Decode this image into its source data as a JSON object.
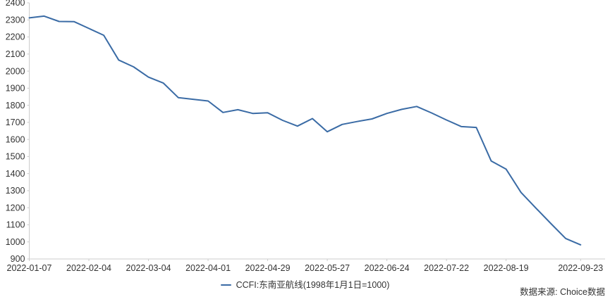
{
  "chart_data": {
    "type": "line",
    "title": "",
    "xlabel": "",
    "ylabel": "",
    "x": [
      "2022-01-07",
      "2022-01-14",
      "2022-01-21",
      "2022-01-28",
      "2022-02-04",
      "2022-02-11",
      "2022-02-18",
      "2022-02-25",
      "2022-03-04",
      "2022-03-11",
      "2022-03-18",
      "2022-03-25",
      "2022-04-01",
      "2022-04-08",
      "2022-04-15",
      "2022-04-22",
      "2022-04-29",
      "2022-05-06",
      "2022-05-13",
      "2022-05-20",
      "2022-05-27",
      "2022-06-03",
      "2022-06-10",
      "2022-06-17",
      "2022-06-24",
      "2022-07-01",
      "2022-07-08",
      "2022-07-15",
      "2022-07-22",
      "2022-07-29",
      "2022-08-05",
      "2022-08-12",
      "2022-08-19",
      "2022-08-26",
      "2022-09-02",
      "2022-09-09",
      "2022-09-16",
      "2022-09-23"
    ],
    "series": [
      {
        "name": "CCFI:东南亚航线(1998年1月1日=1000)",
        "color": "#3A6BA5",
        "values": [
          2312,
          2322,
          2291,
          2290,
          2250,
          2210,
          2065,
          2025,
          1965,
          1930,
          1845,
          1835,
          1825,
          1758,
          1774,
          1752,
          1756,
          1712,
          1678,
          1722,
          1645,
          1688,
          1705,
          1720,
          1752,
          1776,
          1793,
          1755,
          1714,
          1675,
          1670,
          1474,
          1426,
          1290,
          1198,
          1108,
          1020,
          983
        ]
      }
    ],
    "x_tick_labels": [
      "2022-01-07",
      "2022-02-04",
      "2022-03-04",
      "2022-04-01",
      "2022-04-29",
      "2022-05-27",
      "2022-06-24",
      "2022-07-22",
      "2022-08-19",
      "2022-09-23"
    ],
    "ylim": [
      900,
      2400
    ],
    "y_tick_step": 100,
    "grid": false,
    "legend_position": "bottom-center",
    "axis_color": "#cccccc",
    "text_color": "#333333"
  },
  "legend": {
    "label": "CCFI:东南亚航线(1998年1月1日=1000)"
  },
  "footer": {
    "source": "数据来源: Choice数据"
  }
}
